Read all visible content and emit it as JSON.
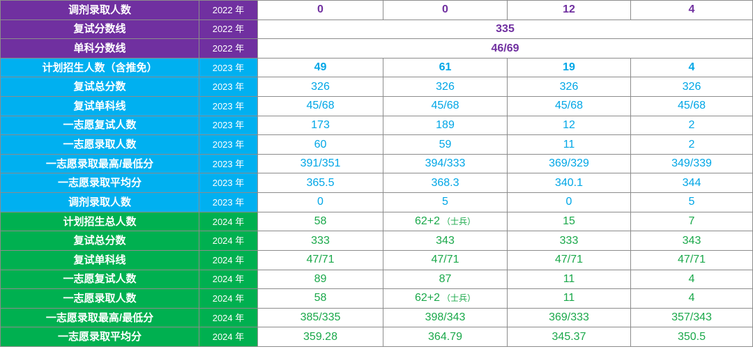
{
  "colors": {
    "year_2022": "#7030a0",
    "year_2023": "#00b0f0",
    "year_2024": "#00b050",
    "text_2023": "#00a6e6",
    "text_2024": "#1aa84a",
    "border": "#8c8c8c"
  },
  "rows": [
    {
      "label": "调剂录取人数",
      "year": "2022 年",
      "values": [
        "0",
        "0",
        "12",
        "4"
      ],
      "group": "2022",
      "bold": true
    },
    {
      "label": "复试分数线",
      "year": "2022 年",
      "merged": "335",
      "group": "2022",
      "bold": true
    },
    {
      "label": "单科分数线",
      "year": "2022 年",
      "merged": "46/69",
      "group": "2022",
      "bold": true
    },
    {
      "label": "计划招生人数（含推免）",
      "year": "2023 年",
      "values": [
        "49",
        "61",
        "19",
        "4"
      ],
      "group": "2023",
      "bold": true
    },
    {
      "label": "复试总分数",
      "year": "2023 年",
      "values": [
        "326",
        "326",
        "326",
        "326"
      ],
      "group": "2023"
    },
    {
      "label": "复试单科线",
      "year": "2023 年",
      "values": [
        "45/68",
        "45/68",
        "45/68",
        "45/68"
      ],
      "group": "2023"
    },
    {
      "label": "一志愿复试人数",
      "year": "2023 年",
      "values": [
        "173",
        "189",
        "12",
        "2"
      ],
      "group": "2023"
    },
    {
      "label": "一志愿录取人数",
      "year": "2023 年",
      "values": [
        "60",
        "59",
        "11",
        "2"
      ],
      "group": "2023"
    },
    {
      "label": "一志愿录取最高/最低分",
      "year": "2023 年",
      "values": [
        "391/351",
        "394/333",
        "369/329",
        "349/339"
      ],
      "group": "2023"
    },
    {
      "label": "一志愿录取平均分",
      "year": "2023 年",
      "values": [
        "365.5",
        "368.3",
        "340.1",
        "344"
      ],
      "group": "2023"
    },
    {
      "label": "调剂录取人数",
      "year": "2023 年",
      "values": [
        "0",
        "5",
        "0",
        "5"
      ],
      "group": "2023"
    },
    {
      "label": "计划招生总人数",
      "year": "2024 年",
      "values": [
        "58",
        "62+2",
        "15",
        "7"
      ],
      "notes": [
        "",
        "（士兵）",
        "",
        ""
      ],
      "group": "2024"
    },
    {
      "label": "复试总分数",
      "year": "2024 年",
      "values": [
        "333",
        "343",
        "333",
        "343"
      ],
      "group": "2024"
    },
    {
      "label": "复试单科线",
      "year": "2024 年",
      "values": [
        "47/71",
        "47/71",
        "47/71",
        "47/71"
      ],
      "group": "2024"
    },
    {
      "label": "一志愿复试人数",
      "year": "2024 年",
      "values": [
        "89",
        "87",
        "11",
        "4"
      ],
      "group": "2024"
    },
    {
      "label": "一志愿录取人数",
      "year": "2024 年",
      "values": [
        "58",
        "62+2",
        "11",
        "4"
      ],
      "notes": [
        "",
        "（士兵）",
        "",
        ""
      ],
      "group": "2024"
    },
    {
      "label": "一志愿录取最高/最低分",
      "year": "2024 年",
      "values": [
        "385/335",
        "398/343",
        "369/333",
        "357/343"
      ],
      "group": "2024"
    },
    {
      "label": "一志愿录取平均分",
      "year": "2024 年",
      "values": [
        "359.28",
        "364.79",
        "345.37",
        "350.5"
      ],
      "group": "2024"
    }
  ]
}
